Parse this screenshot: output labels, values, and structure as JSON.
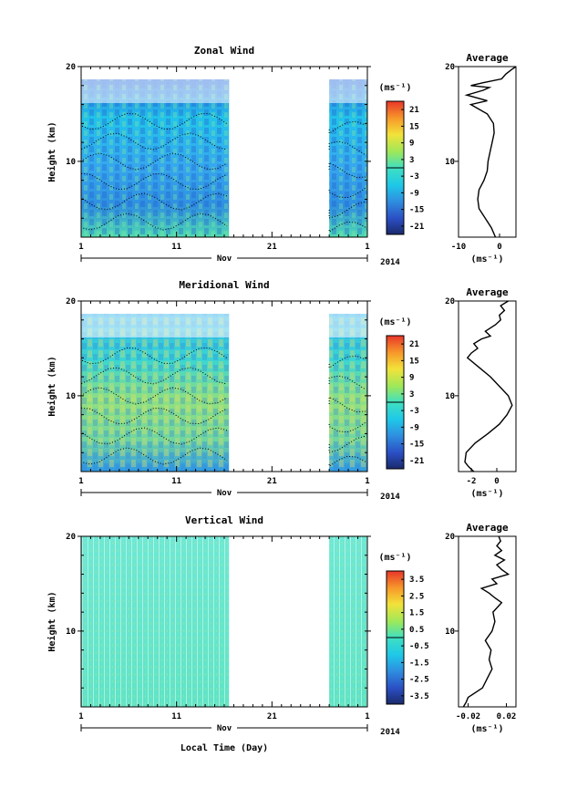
{
  "common": {
    "x_label": "Local Time (Day)",
    "x_ticks": [
      "1",
      "11",
      "21",
      "1"
    ],
    "month_label": "Nov",
    "year_label": "2014",
    "y_label": "Height (km)",
    "y_ticks": [
      "20",
      "10"
    ],
    "unit_label": "(ms⁻¹)",
    "avg_title": "Average"
  },
  "chart_data": [
    {
      "type": "heatmap",
      "title": "Zonal Wind",
      "ylabel": "Height (km)",
      "xlabel": "",
      "ylim": [
        2,
        20
      ],
      "xlim_days": [
        1,
        31
      ],
      "data_gaps_days": [
        [
          16.5,
          27
        ]
      ],
      "colorbar": {
        "ticks": [
          "21",
          "15",
          "9",
          "3",
          "-3",
          "-9",
          "-15",
          "-21"
        ],
        "range": [
          -24,
          24
        ]
      },
      "average_profile": {
        "title": "Average",
        "xlabel": "(ms⁻¹)",
        "xlim": [
          -10,
          4
        ],
        "x_ticks": [
          "-10",
          "0"
        ],
        "points": [
          [
            -1,
            2
          ],
          [
            -2,
            3
          ],
          [
            -3.5,
            4
          ],
          [
            -5,
            5
          ],
          [
            -5.3,
            6
          ],
          [
            -5,
            7
          ],
          [
            -3.8,
            8
          ],
          [
            -3,
            9
          ],
          [
            -2.8,
            10
          ],
          [
            -2.3,
            11
          ],
          [
            -1.8,
            12
          ],
          [
            -1.3,
            13
          ],
          [
            -1.5,
            14
          ],
          [
            -3,
            15
          ],
          [
            -7,
            16
          ],
          [
            -3,
            16.4
          ],
          [
            -8,
            17
          ],
          [
            -4,
            17.5
          ],
          [
            -2.5,
            17.8
          ],
          [
            -7,
            18
          ],
          [
            -4,
            18.3
          ],
          [
            0.5,
            18.7
          ],
          [
            1.5,
            19.2
          ],
          [
            3,
            19.7
          ],
          [
            4,
            20
          ]
        ]
      }
    },
    {
      "type": "heatmap",
      "title": "Meridional Wind",
      "ylabel": "Height (km)",
      "xlabel": "",
      "ylim": [
        2,
        20
      ],
      "xlim_days": [
        1,
        31
      ],
      "data_gaps_days": [
        [
          16.5,
          27
        ]
      ],
      "colorbar": {
        "ticks": [
          "21",
          "15",
          "9",
          "3",
          "-3",
          "-9",
          "-15",
          "-21"
        ],
        "range": [
          -24,
          24
        ]
      },
      "average_profile": {
        "title": "Average",
        "xlabel": "(ms⁻¹)",
        "xlim": [
          -3,
          1.5
        ],
        "x_ticks": [
          "-2",
          "0"
        ],
        "points": [
          [
            -1.8,
            2
          ],
          [
            -2.2,
            2.5
          ],
          [
            -2.5,
            3
          ],
          [
            -2.4,
            4
          ],
          [
            -1.7,
            5
          ],
          [
            -0.7,
            6
          ],
          [
            0.2,
            7
          ],
          [
            0.8,
            8
          ],
          [
            1.2,
            9
          ],
          [
            0.9,
            10
          ],
          [
            0.2,
            11
          ],
          [
            -0.5,
            12
          ],
          [
            -1.4,
            13
          ],
          [
            -2.3,
            14
          ],
          [
            -2,
            14.5
          ],
          [
            -1.5,
            15
          ],
          [
            -1.8,
            15.5
          ],
          [
            -1.2,
            16
          ],
          [
            -0.5,
            16.3
          ],
          [
            -0.9,
            16.8
          ],
          [
            -0.1,
            17.5
          ],
          [
            0.3,
            18
          ],
          [
            0.2,
            18.5
          ],
          [
            0.6,
            19
          ],
          [
            0.3,
            19.5
          ],
          [
            0.9,
            20
          ]
        ]
      }
    },
    {
      "type": "heatmap",
      "title": "Vertical Wind",
      "ylabel": "Height (km)",
      "xlabel": "Local Time (Day)",
      "ylim": [
        2,
        20
      ],
      "xlim_days": [
        1,
        31
      ],
      "data_gaps_days": [
        [
          16.5,
          27
        ]
      ],
      "colorbar": {
        "ticks": [
          "3.5",
          "2.5",
          "1.5",
          "0.5",
          "-0.5",
          "-1.5",
          "-2.5",
          "-3.5"
        ],
        "range": [
          -4,
          4
        ]
      },
      "average_profile": {
        "title": "Average",
        "xlabel": "(ms⁻¹)",
        "xlim": [
          -0.03,
          0.03
        ],
        "x_ticks": [
          "-0.02",
          "0.02"
        ],
        "points": [
          [
            -0.025,
            2
          ],
          [
            -0.022,
            2.5
          ],
          [
            -0.02,
            3
          ],
          [
            -0.005,
            4
          ],
          [
            0,
            5
          ],
          [
            0.005,
            6
          ],
          [
            0.002,
            7
          ],
          [
            0.004,
            8
          ],
          [
            -0.002,
            9
          ],
          [
            0.005,
            10
          ],
          [
            0.008,
            11
          ],
          [
            0.006,
            12
          ],
          [
            0.015,
            13
          ],
          [
            0.008,
            13.5
          ],
          [
            0.002,
            14
          ],
          [
            -0.006,
            14.5
          ],
          [
            0.01,
            15
          ],
          [
            0.005,
            15.5
          ],
          [
            0.022,
            16
          ],
          [
            0.015,
            16.5
          ],
          [
            0.01,
            17
          ],
          [
            0.018,
            17.5
          ],
          [
            0.008,
            18
          ],
          [
            0.015,
            18.5
          ],
          [
            0.01,
            19
          ],
          [
            0.014,
            19.5
          ],
          [
            0.012,
            20
          ]
        ]
      }
    }
  ]
}
